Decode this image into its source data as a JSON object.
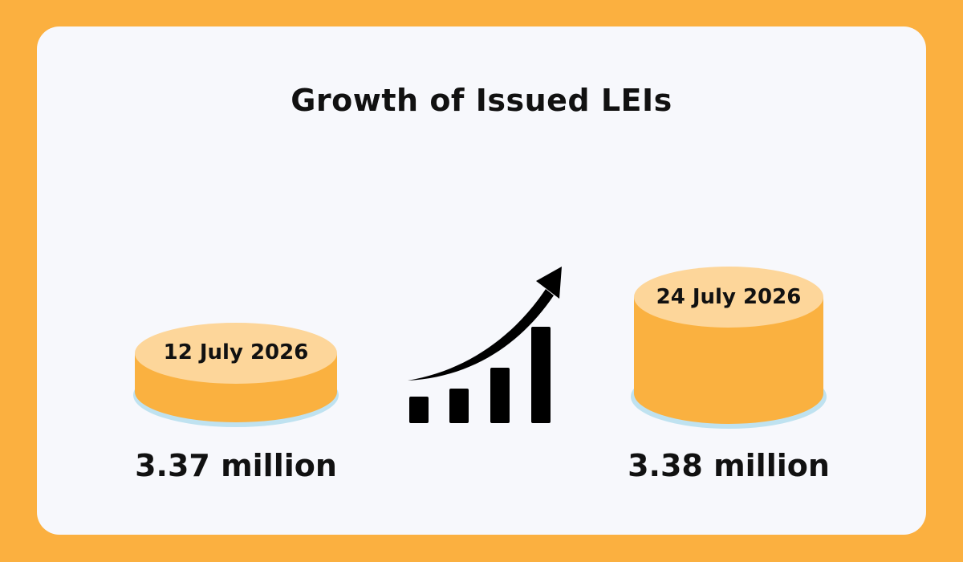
{
  "title": "Growth of Issued LEIs",
  "colors": {
    "background": "#FBB040",
    "card": "#F7F8FC",
    "cylinder_body": "#FAB140",
    "cylinder_top": "#FDD69A",
    "shadow": "#BFE2F0",
    "text": "#111111"
  },
  "left": {
    "date": "12 July 2026",
    "value": "3.37 million"
  },
  "right": {
    "date": "24 July 2026",
    "value": "3.38 million"
  },
  "icon": "growth-chart-arrow-icon"
}
